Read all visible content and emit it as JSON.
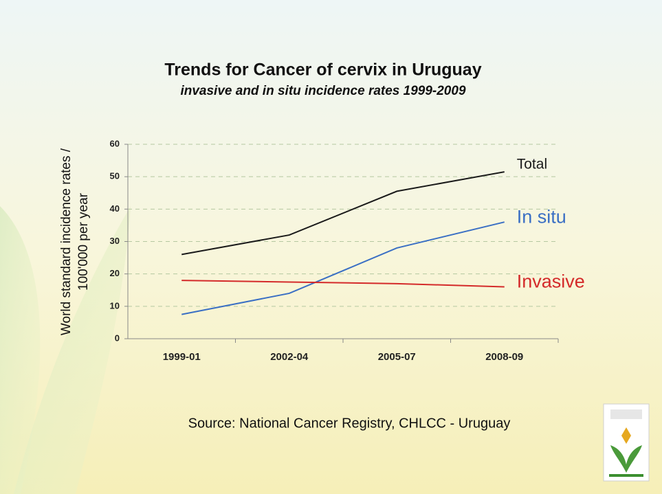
{
  "chart_data": {
    "type": "line",
    "title": "Trends for Cancer of cervix in Uruguay",
    "subtitle": "invasive and in situ incidence rates 1999-2009",
    "ylabel": [
      "World standard incidence rates /",
      "100'000 per year"
    ],
    "source": "Source: National Cancer Registry, CHLCC  - Uruguay",
    "categories": [
      "1999-01",
      "2002-04",
      "2005-07",
      "2008-09"
    ],
    "series": [
      {
        "name": "Total",
        "color": "#1a1a1a",
        "values": [
          26,
          32,
          45.5,
          51.5
        ]
      },
      {
        "name": "In situ",
        "color": "#3a6fc4",
        "values": [
          7.5,
          14,
          28,
          36
        ]
      },
      {
        "name": "Invasive",
        "color": "#d42a2a",
        "values": [
          18,
          17.5,
          17,
          16
        ]
      }
    ],
    "ylim": [
      0,
      60
    ],
    "yticks": [
      0,
      10,
      20,
      30,
      40,
      50,
      60
    ],
    "grid": true
  }
}
